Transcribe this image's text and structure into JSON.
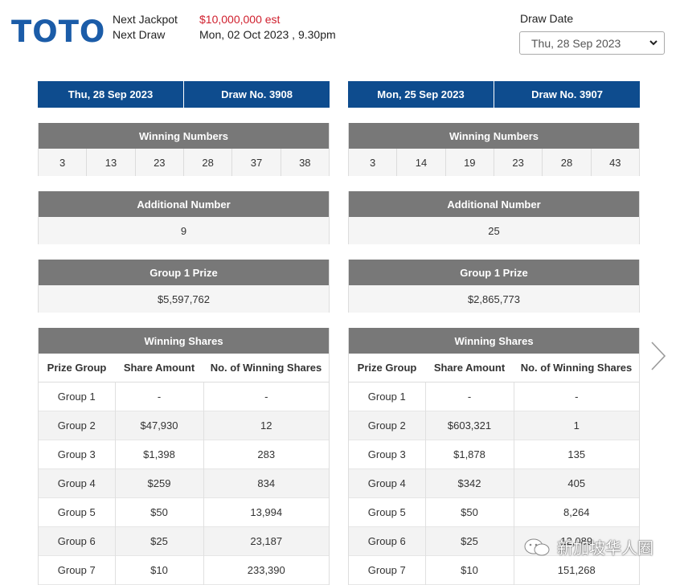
{
  "header": {
    "logo": "TOTO",
    "next_jackpot_label": "Next Jackpot",
    "next_jackpot_value": "$10,000,000 est",
    "next_draw_label": "Next Draw",
    "next_draw_value": "Mon, 02 Oct 2023 , 9.30pm",
    "draw_date_label": "Draw Date",
    "draw_date_selected": "Thu, 28 Sep 2023"
  },
  "section_labels": {
    "winning_numbers": "Winning Numbers",
    "additional_number": "Additional Number",
    "group1_prize": "Group 1 Prize",
    "winning_shares": "Winning Shares",
    "col_prize_group": "Prize Group",
    "col_share_amount": "Share Amount",
    "col_num_shares": "No. of Winning Shares"
  },
  "draws": [
    {
      "date": "Thu, 28 Sep 2023",
      "draw_no": "Draw No. 3908",
      "winning_numbers": [
        "3",
        "13",
        "23",
        "28",
        "37",
        "38"
      ],
      "additional_number": "9",
      "group1_prize": "$5,597,762",
      "shares": [
        {
          "group": "Group 1",
          "amount": "-",
          "count": "-"
        },
        {
          "group": "Group 2",
          "amount": "$47,930",
          "count": "12"
        },
        {
          "group": "Group 3",
          "amount": "$1,398",
          "count": "283"
        },
        {
          "group": "Group 4",
          "amount": "$259",
          "count": "834"
        },
        {
          "group": "Group 5",
          "amount": "$50",
          "count": "13,994"
        },
        {
          "group": "Group 6",
          "amount": "$25",
          "count": "23,187"
        },
        {
          "group": "Group 7",
          "amount": "$10",
          "count": "233,390"
        }
      ]
    },
    {
      "date": "Mon, 25 Sep 2023",
      "draw_no": "Draw No. 3907",
      "winning_numbers": [
        "3",
        "14",
        "19",
        "23",
        "28",
        "43"
      ],
      "additional_number": "25",
      "group1_prize": "$2,865,773",
      "shares": [
        {
          "group": "Group 1",
          "amount": "-",
          "count": "-"
        },
        {
          "group": "Group 2",
          "amount": "$603,321",
          "count": "1"
        },
        {
          "group": "Group 3",
          "amount": "$1,878",
          "count": "135"
        },
        {
          "group": "Group 4",
          "amount": "$342",
          "count": "405"
        },
        {
          "group": "Group 5",
          "amount": "$50",
          "count": "8,264"
        },
        {
          "group": "Group 6",
          "amount": "$25",
          "count": "12,089"
        },
        {
          "group": "Group 7",
          "amount": "$10",
          "count": "151,268"
        }
      ]
    }
  ],
  "watermark": "新加坡华人圈",
  "colors": {
    "brand": "#1b5ca8",
    "bar": "#0e4c8e",
    "section": "#787878",
    "jackpot": "#d0202e"
  }
}
